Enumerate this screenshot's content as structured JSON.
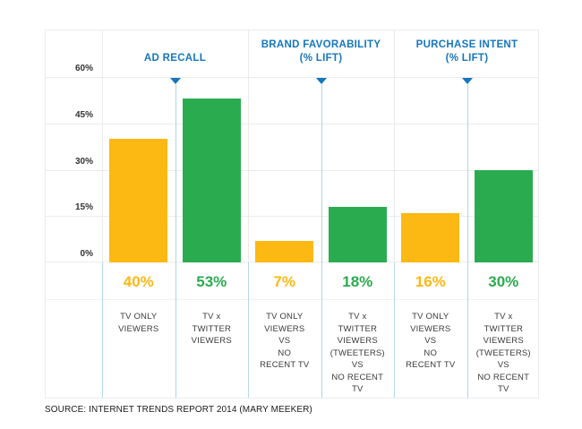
{
  "source": "SOURCE: INTERNET TRENDS REPORT 2014 (MARY MEEKER)",
  "colors": {
    "header_blue": "#1577bd",
    "marker_line_blue": "#afd3ea",
    "bar_yellow": "#fcb813",
    "bar_green": "#2bab4f",
    "grid_gray": "#ececec",
    "label_text": "#3b3b3b"
  },
  "y_axis": {
    "ticks": [
      {
        "value": 0,
        "label": "0%"
      },
      {
        "value": 15,
        "label": "15%"
      },
      {
        "value": 30,
        "label": "30%"
      },
      {
        "value": 45,
        "label": "45%"
      },
      {
        "value": 60,
        "label": "60%"
      }
    ]
  },
  "chart_data": {
    "type": "bar",
    "title": "",
    "xlabel": "",
    "ylabel": "",
    "ylim": [
      0,
      60
    ],
    "yticks": [
      0,
      15,
      30,
      45,
      60
    ],
    "grid": true,
    "legend": false,
    "groups": [
      {
        "title": "AD RECALL",
        "bars": [
          {
            "category": "TV ONLY\nVIEWERS",
            "value": 40,
            "value_label": "40%",
            "color": "yellow"
          },
          {
            "category": "TV x\nTWITTER\nVIEWERS",
            "value": 53,
            "value_label": "53%",
            "color": "green"
          }
        ]
      },
      {
        "title": "BRAND FAVORABILITY\n(% LIFT)",
        "bars": [
          {
            "category": "TV ONLY\nVIEWERS\nVS\nNO\nRECENT TV",
            "value": 7,
            "value_label": "7%",
            "color": "yellow"
          },
          {
            "category": "TV x\nTWITTER\nVIEWERS\n(TWEETERS)\nVS\nNO RECENT\nTV",
            "value": 18,
            "value_label": "18%",
            "color": "green"
          }
        ]
      },
      {
        "title": "PURCHASE INTENT\n(% LIFT)",
        "bars": [
          {
            "category": "TV ONLY\nVIEWERS\nVS\nNO\nRECENT TV",
            "value": 16,
            "value_label": "16%",
            "color": "yellow"
          },
          {
            "category": "TV x\nTWITTER\nVIEWERS\n(TWEETERS)\nVS\nNO RECENT\nTV",
            "value": 30,
            "value_label": "30%",
            "color": "green"
          }
        ]
      }
    ]
  }
}
